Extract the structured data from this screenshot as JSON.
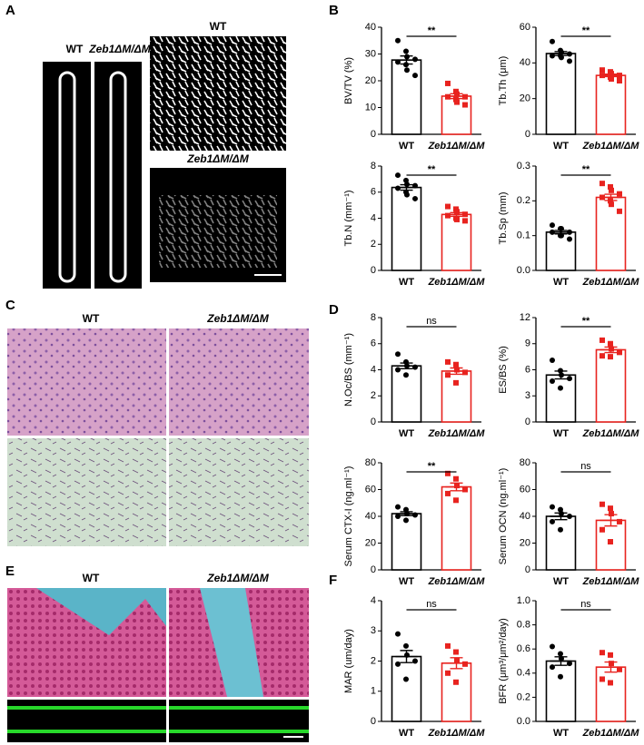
{
  "panels": [
    "A",
    "B",
    "C",
    "D",
    "E",
    "F"
  ],
  "image_labels": {
    "A": [
      "WT",
      "Zeb1ΔM/ΔM",
      "WT",
      "Zeb1ΔM/ΔM"
    ],
    "C": [
      "WT",
      "Zeb1ΔM/ΔM"
    ],
    "E": [
      "WT",
      "Zeb1ΔM/ΔM"
    ]
  },
  "chart_data": [
    {
      "type": "bar",
      "ylabel": "BV/TV (%)",
      "categories": [
        "WT",
        "Zeb1ΔM/ΔM"
      ],
      "colors": [
        "#000000",
        "#e8231f"
      ],
      "values": [
        27.75,
        14.25
      ],
      "errors": [
        1.5,
        0.9
      ],
      "points": [
        [
          35,
          31,
          29,
          28,
          27,
          26,
          24,
          22
        ],
        [
          19,
          16,
          15,
          14,
          14,
          13,
          12,
          11
        ]
      ],
      "significance": "**",
      "ylim": [
        0,
        40
      ],
      "yticks": [
        0,
        10,
        20,
        30,
        40
      ]
    },
    {
      "type": "bar",
      "ylabel": "Tb.Th (μm)",
      "categories": [
        "WT",
        "Zeb1ΔM/ΔM"
      ],
      "colors": [
        "#000000",
        "#e8231f"
      ],
      "values": [
        45.25,
        33
      ],
      "errors": [
        1.1,
        0.7
      ],
      "points": [
        [
          52,
          47,
          46,
          45,
          44,
          44,
          43,
          41
        ],
        [
          36,
          35,
          34,
          33,
          33,
          32,
          31,
          30
        ]
      ],
      "significance": "**",
      "ylim": [
        0,
        60
      ],
      "yticks": [
        0,
        20,
        40,
        60
      ]
    },
    {
      "type": "bar",
      "ylabel": "Tb.N (mm⁻¹)",
      "categories": [
        "WT",
        "Zeb1ΔM/ΔM"
      ],
      "colors": [
        "#000000",
        "#e8231f"
      ],
      "values": [
        6.36,
        4.29
      ],
      "errors": [
        0.21,
        0.14
      ],
      "points": [
        [
          7.3,
          6.9,
          6.6,
          6.5,
          6.3,
          6.0,
          5.8,
          5.5
        ],
        [
          4.9,
          4.7,
          4.5,
          4.3,
          4.2,
          4.0,
          3.9,
          3.8
        ]
      ],
      "significance": "**",
      "ylim": [
        0,
        8
      ],
      "yticks": [
        0,
        2,
        4,
        6,
        8
      ]
    },
    {
      "type": "bar",
      "ylabel": "Tb.Sp (mm)",
      "categories": [
        "WT",
        "Zeb1ΔM/ΔM"
      ],
      "colors": [
        "#000000",
        "#e8231f"
      ],
      "values": [
        0.11,
        0.21
      ],
      "errors": [
        0.005,
        0.009
      ],
      "points": [
        [
          0.13,
          0.12,
          0.12,
          0.11,
          0.11,
          0.1,
          0.1,
          0.09
        ],
        [
          0.25,
          0.24,
          0.23,
          0.22,
          0.21,
          0.2,
          0.19,
          0.17
        ]
      ],
      "significance": "**",
      "ylim": [
        0,
        0.3
      ],
      "yticks": [
        {
          "value": 0,
          "label": "0.0"
        },
        0.1,
        0.2,
        0.3
      ]
    },
    {
      "type": "bar",
      "ylabel": "N.Oc/BS (mm⁻¹)",
      "categories": [
        "WT",
        "Zeb1ΔM/ΔM"
      ],
      "colors": [
        "#000000",
        "#e8231f"
      ],
      "values": [
        4.3,
        3.9
      ],
      "errors": [
        0.22,
        0.24
      ],
      "points": [
        [
          5.2,
          4.6,
          4.3,
          4.2,
          4.0,
          3.6
        ],
        [
          4.6,
          4.4,
          4.0,
          3.8,
          3.6,
          3.0
        ]
      ],
      "significance": "ns",
      "ylim": [
        0,
        8
      ],
      "yticks": [
        0,
        2,
        4,
        6,
        8
      ]
    },
    {
      "type": "bar",
      "ylabel": "ES/BS (%)",
      "categories": [
        "WT",
        "Zeb1ΔM/ΔM"
      ],
      "colors": [
        "#000000",
        "#e8231f"
      ],
      "values": [
        5.4,
        8.3
      ],
      "errors": [
        0.45,
        0.32
      ],
      "points": [
        [
          7.1,
          5.9,
          5.4,
          5.0,
          4.7,
          3.9
        ],
        [
          9.4,
          9.0,
          8.4,
          8.0,
          7.6,
          7.5
        ]
      ],
      "significance": "**",
      "ylim": [
        0,
        12
      ],
      "yticks": [
        0,
        3,
        6,
        9,
        12
      ]
    },
    {
      "type": "bar",
      "ylabel": "Serum CTX-I (ng.ml⁻¹)",
      "categories": [
        "WT",
        "Zeb1ΔM/ΔM"
      ],
      "colors": [
        "#000000",
        "#e8231f"
      ],
      "values": [
        42,
        62
      ],
      "errors": [
        1.4,
        2.9
      ],
      "points": [
        [
          47,
          45,
          42,
          41,
          40,
          37
        ],
        [
          72,
          68,
          63,
          60,
          57,
          52
        ]
      ],
      "significance": "**",
      "ylim": [
        0,
        80
      ],
      "yticks": [
        0,
        20,
        40,
        60,
        80
      ]
    },
    {
      "type": "bar",
      "ylabel": "Serum OCN (ng.ml⁻¹)",
      "categories": [
        "WT",
        "Zeb1ΔM/ΔM"
      ],
      "colors": [
        "#000000",
        "#e8231f"
      ],
      "values": [
        40,
        37
      ],
      "errors": [
        2.5,
        4.2
      ],
      "points": [
        [
          47,
          45,
          42,
          40,
          36,
          30
        ],
        [
          49,
          46,
          42,
          36,
          30,
          21
        ]
      ],
      "significance": "ns",
      "ylim": [
        0,
        80
      ],
      "yticks": [
        0,
        20,
        40,
        60,
        80
      ]
    },
    {
      "type": "bar",
      "ylabel": "MAR (um/day)",
      "categories": [
        "WT",
        "Zeb1ΔM/ΔM"
      ],
      "colors": [
        "#000000",
        "#e8231f"
      ],
      "values": [
        2.15,
        1.93
      ],
      "errors": [
        0.2,
        0.18
      ],
      "points": [
        [
          2.9,
          2.5,
          2.2,
          2.0,
          1.9,
          1.4
        ],
        [
          2.5,
          2.3,
          2.0,
          1.9,
          1.6,
          1.3
        ]
      ],
      "significance": "ns",
      "ylim": [
        0,
        4
      ],
      "yticks": [
        0,
        1,
        2,
        3,
        4
      ]
    },
    {
      "type": "bar",
      "ylabel": "BFR (μm³/μm²/day)",
      "categories": [
        "WT",
        "Zeb1ΔM/ΔM"
      ],
      "colors": [
        "#000000",
        "#e8231f"
      ],
      "values": [
        0.5,
        0.45
      ],
      "errors": [
        0.035,
        0.042
      ],
      "points": [
        [
          0.62,
          0.56,
          0.52,
          0.48,
          0.45,
          0.37
        ],
        [
          0.57,
          0.55,
          0.48,
          0.43,
          0.35,
          0.32
        ]
      ],
      "significance": "ns",
      "ylim": [
        0,
        1
      ],
      "yticks": [
        {
          "value": 0,
          "label": "0.0"
        },
        0.2,
        0.4,
        0.6,
        0.8,
        {
          "value": 1,
          "label": "1.0"
        }
      ]
    }
  ]
}
